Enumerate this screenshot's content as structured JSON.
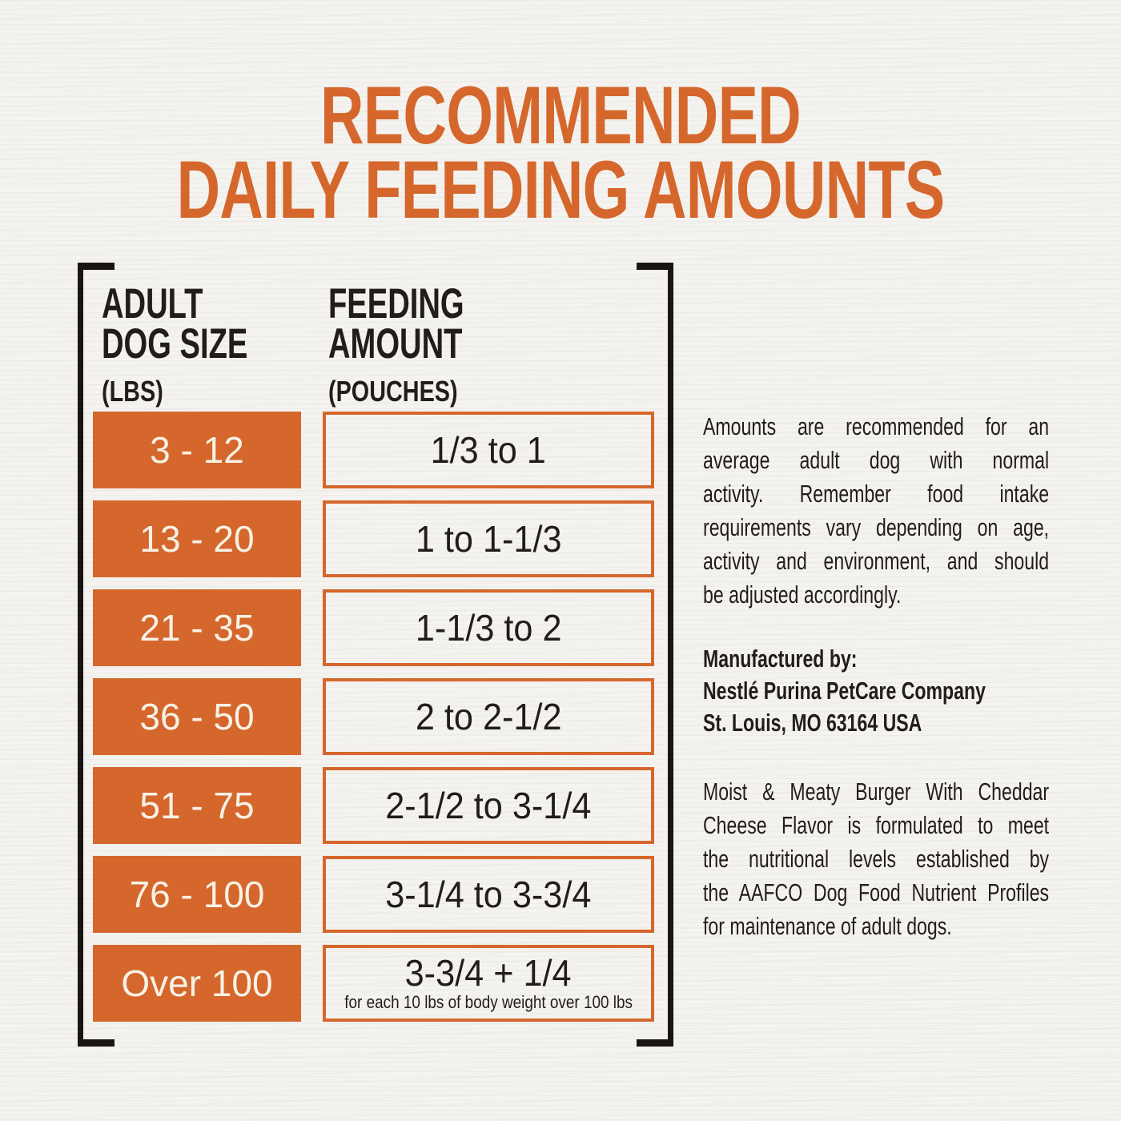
{
  "title": {
    "line1": "RECOMMENDED",
    "line2": "DAILY FEEDING AMOUNTS"
  },
  "table": {
    "columns": [
      {
        "title_line1": "ADULT",
        "title_line2": "DOG SIZE",
        "unit": "(LBS)"
      },
      {
        "title_line1": "FEEDING",
        "title_line2": "AMOUNT",
        "unit": "(POUCHES)"
      }
    ],
    "rows": [
      {
        "size": "3 - 12",
        "amount": "1/3 to 1"
      },
      {
        "size": "13 - 20",
        "amount": "1 to 1-1/3"
      },
      {
        "size": "21 - 35",
        "amount": "1-1/3 to 2"
      },
      {
        "size": "36 - 50",
        "amount": "2 to 2-1/2"
      },
      {
        "size": "51 - 75",
        "amount": "2-1/2 to 3-1/4"
      },
      {
        "size": "76 - 100",
        "amount": "3-1/4 to 3-3/4"
      },
      {
        "size": "Over 100",
        "amount": "3-3/4 + 1/4",
        "amount_note": "for each 10 lbs of body weight over 100 lbs"
      }
    ]
  },
  "info_panel": {
    "feeding_note": {
      "lines": [
        "Amounts are recommended for an",
        "average adult dog with normal",
        "activity. Remember food intake",
        "requirements vary depending on age,",
        "activity and environment, and should",
        "be adjusted accordingly."
      ]
    },
    "manufacturer": {
      "label": "Manufactured by:",
      "company": "Nestlé Purina PetCare Company",
      "address": "St. Louis, MO 63164 USA"
    },
    "aafco_statement": {
      "lines": [
        "Moist & Meaty Burger With Cheddar",
        "Cheese Flavor is formulated to meet",
        "the nutritional levels established by",
        "the AAFCO Dog Food Nutrient Profiles",
        "for maintenance of adult dogs."
      ]
    }
  },
  "colors": {
    "accent_orange": "#d5672c",
    "text_black": "#211d1b",
    "cell_text_cream": "#f8f2e6",
    "paper_background": "#f4f3f0",
    "bracket_black": "#181512"
  }
}
